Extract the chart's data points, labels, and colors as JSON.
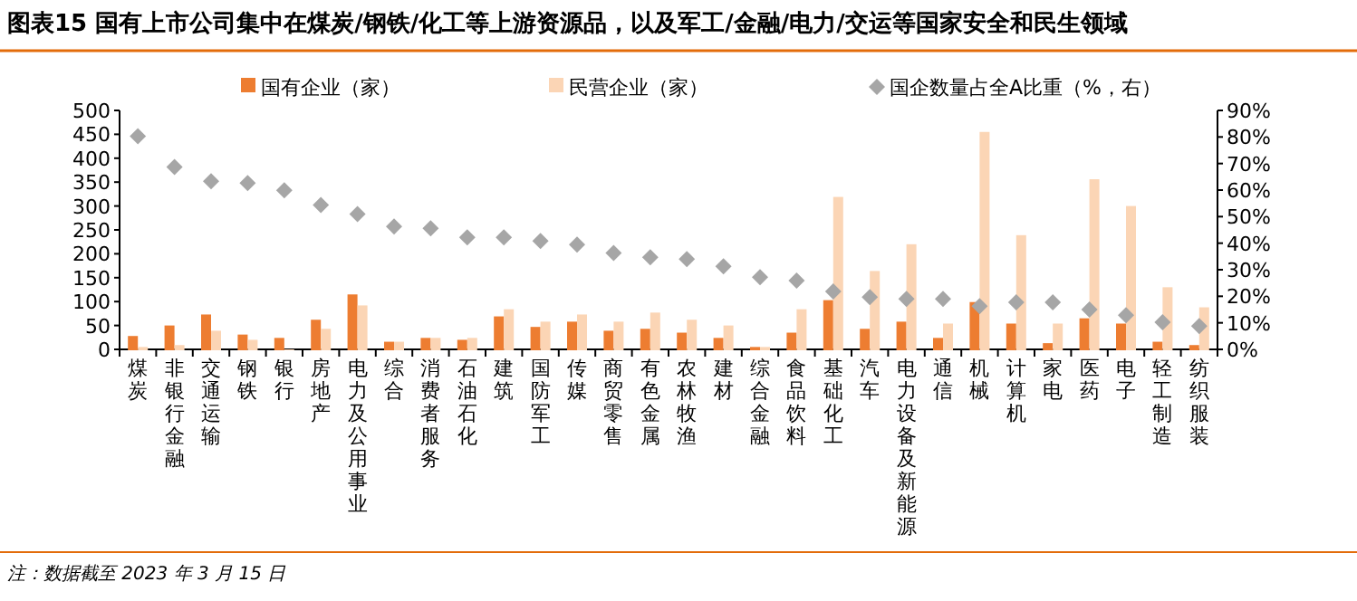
{
  "chart_data": {
    "type": "bar",
    "title": "图表15    国有上市公司集中在煤炭/钢铁/化工等上游资源品，以及军工/金融/电力/交运等国家安全和民生领域",
    "categories": [
      "煤炭",
      "非银行金融",
      "交通运输",
      "钢铁",
      "银行",
      "房地产",
      "电力及公用事业",
      "综合",
      "消费者服务",
      "石油石化",
      "建筑",
      "国防军工",
      "传媒",
      "商贸零售",
      "有色金属",
      "农林牧渔",
      "建材",
      "综合金融",
      "食品饮料",
      "基础化工",
      "汽车",
      "电力设备及新能源",
      "通信",
      "机械",
      "计算机",
      "家电",
      "医药",
      "电子",
      "轻工制造",
      "纺织服装"
    ],
    "series": [
      {
        "name": "国有企业（家）",
        "color": "#ed7d31",
        "values": [
          28,
          50,
          73,
          31,
          24,
          62,
          115,
          16,
          24,
          20,
          69,
          47,
          58,
          39,
          43,
          35,
          24,
          5,
          35,
          103,
          43,
          58,
          24,
          99,
          54,
          13,
          65,
          54,
          16,
          9
        ]
      },
      {
        "name": "民营企业（家）",
        "color": "#fbd5b5",
        "values": [
          5,
          9,
          39,
          20,
          0,
          43,
          92,
          16,
          24,
          24,
          84,
          58,
          73,
          58,
          77,
          62,
          50,
          5,
          84,
          319,
          164,
          220,
          54,
          455,
          239,
          54,
          356,
          300,
          130,
          88
        ]
      },
      {
        "name": "国企数量占全A比重（%，右）",
        "type": "scatter",
        "marker": "diamond",
        "axis": "y2",
        "color": "#a6a6a6",
        "values": [
          80.3,
          68.7,
          63.3,
          62.6,
          59.9,
          54.4,
          51.0,
          46.3,
          45.6,
          42.2,
          42.2,
          40.8,
          39.5,
          36.3,
          34.7,
          34.0,
          31.3,
          27.2,
          25.9,
          21.8,
          19.7,
          19.0,
          19.0,
          16.3,
          17.7,
          17.7,
          15.0,
          12.9,
          10.2,
          8.8
        ]
      }
    ],
    "ylim": [
      0,
      500
    ],
    "yticks": [
      0,
      50,
      100,
      150,
      200,
      250,
      300,
      350,
      400,
      450,
      500
    ],
    "y2lim": [
      0,
      90
    ],
    "y2ticks": [
      {
        "value": 0,
        "label": "0%"
      },
      {
        "value": 10,
        "label": "10%"
      },
      {
        "value": 20,
        "label": "20%"
      },
      {
        "value": 30,
        "label": "30%"
      },
      {
        "value": 40,
        "label": "40%"
      },
      {
        "value": 50,
        "label": "50%"
      },
      {
        "value": 60,
        "label": "60%"
      },
      {
        "value": 70,
        "label": "70%"
      },
      {
        "value": 80,
        "label": "80%"
      },
      {
        "value": 90,
        "label": "90%"
      }
    ],
    "legend": "top",
    "grid": false,
    "annotations": [
      "注：数据截至 2023 年 3 月 15 日"
    ]
  }
}
